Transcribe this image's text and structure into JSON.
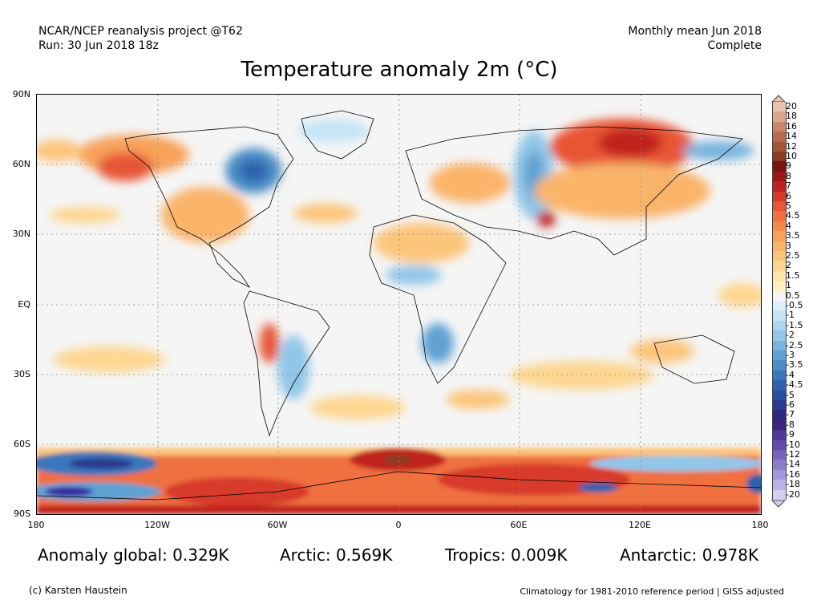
{
  "header": {
    "left_line1": "NCAR/NCEP reanalysis project @T62",
    "left_line2": "Run: 30 Jun 2018 18z",
    "right_line1": "Monthly mean Jun 2018",
    "right_line2": "Complete"
  },
  "title": "Temperature anomaly 2m (°C)",
  "axes": {
    "y_labels": [
      "90N",
      "60N",
      "30N",
      "EQ",
      "30S",
      "60S",
      "90S"
    ],
    "x_labels": [
      "180",
      "120W",
      "60W",
      "0",
      "60E",
      "120E",
      "180"
    ]
  },
  "colorbar": {
    "labels": [
      "20",
      "18",
      "16",
      "14",
      "12",
      "10",
      "9",
      "8",
      "7",
      "6",
      "5",
      "4.5",
      "4",
      "3.5",
      "3",
      "2.5",
      "2",
      "1.5",
      "1",
      "0.5",
      "-0.5",
      "-1",
      "-1.5",
      "-2",
      "-2.5",
      "-3",
      "-3.5",
      "-4",
      "-4.5",
      "-5",
      "-6",
      "-7",
      "-8",
      "-9",
      "-10",
      "-12",
      "-14",
      "-16",
      "-18",
      "-20"
    ],
    "colors": [
      "#e8c3b0",
      "#d9a58c",
      "#c8876b",
      "#b66b4f",
      "#a35538",
      "#8c3b22",
      "#7a1212",
      "#a01515",
      "#c0231f",
      "#d83a2a",
      "#e85535",
      "#f07040",
      "#f5894a",
      "#f8a25a",
      "#fab46a",
      "#fcc57c",
      "#fdd690",
      "#fee4a8",
      "#fff0c4",
      "#f5f5f5",
      "#dceffa",
      "#c5e4f6",
      "#acd6f0",
      "#91c6e8",
      "#78b4de",
      "#5fa1d3",
      "#4a8dc7",
      "#3a77bb",
      "#2f62ad",
      "#2a4d9e",
      "#2b3a8f",
      "#2e2a82",
      "#3a2480",
      "#4f3795",
      "#634ca9",
      "#7763bc",
      "#8d7bcc",
      "#a396da",
      "#bbb2e6",
      "#d4cff0"
    ]
  },
  "stats": {
    "global": "Anomaly global: 0.329K",
    "arctic": "Arctic: 0.569K",
    "tropics": "Tropics: 0.009K",
    "antarctic": "Antarctic: 0.978K"
  },
  "footer": {
    "credit": "(c) Karsten Haustein",
    "note": "Climatology for 1981-2010 reference period | GISS adjusted"
  }
}
